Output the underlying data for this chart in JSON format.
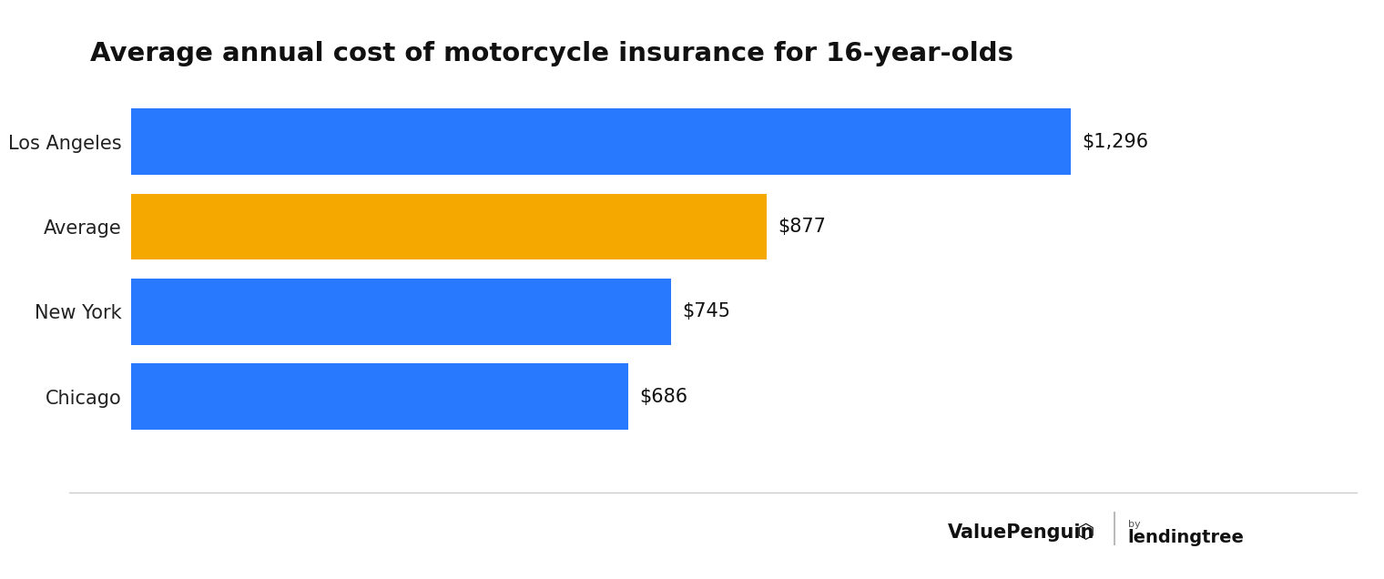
{
  "title": "Average annual cost of motorcycle insurance for 16-year-olds",
  "categories": [
    "Los Angeles",
    "Average",
    "New York",
    "Chicago"
  ],
  "values": [
    1296,
    877,
    745,
    686
  ],
  "bar_colors": [
    "#2979FF",
    "#F5A800",
    "#2979FF",
    "#2979FF"
  ],
  "labels": [
    "$1,296",
    "$877",
    "$745",
    "$686"
  ],
  "background_color": "#ffffff",
  "title_fontsize": 21,
  "label_fontsize": 15,
  "tick_fontsize": 15,
  "xlim": [
    0,
    1480
  ],
  "bar_height": 0.78
}
